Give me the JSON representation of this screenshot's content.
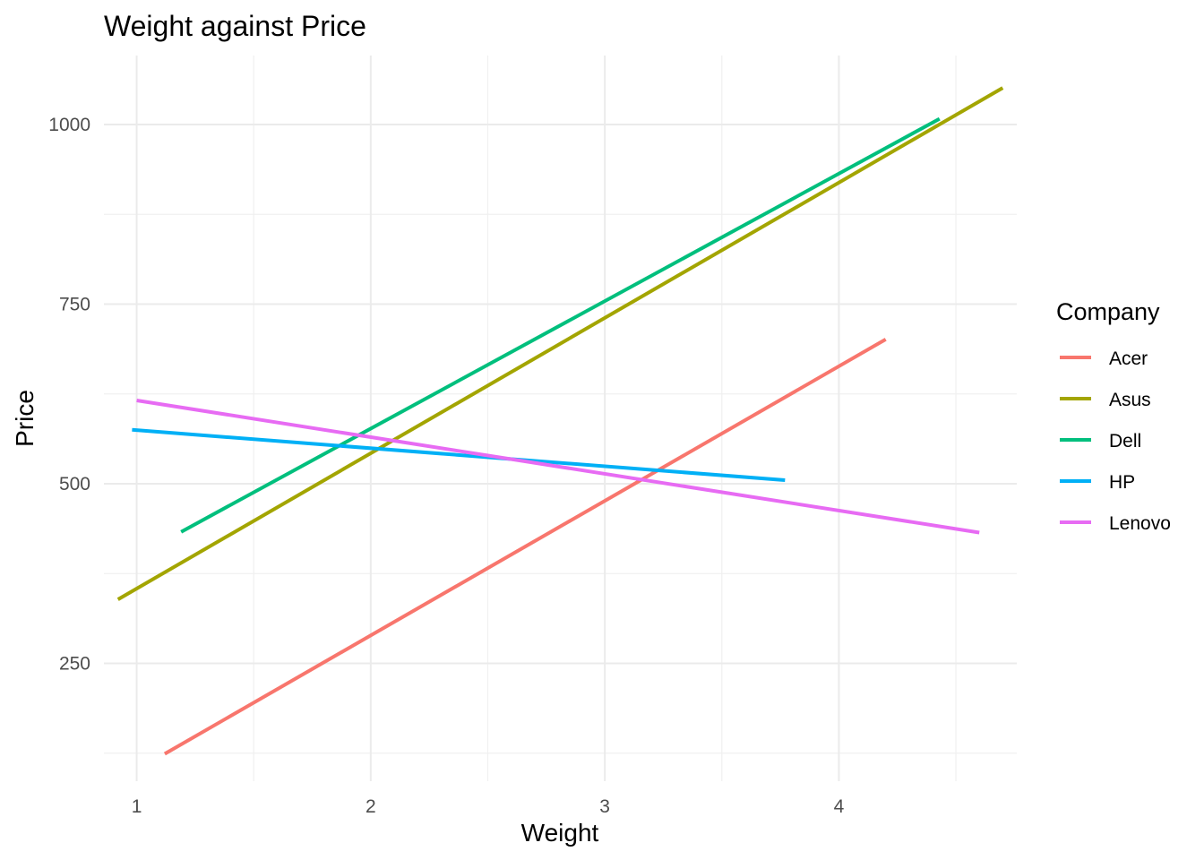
{
  "chart_data": {
    "type": "line",
    "title": "Weight against Price",
    "xlabel": "Weight",
    "ylabel": "Price",
    "xlim": [
      0.86,
      4.76
    ],
    "ylim": [
      86,
      1096
    ],
    "x_ticks": [
      1,
      2,
      3,
      4
    ],
    "y_ticks": [
      250,
      500,
      750,
      1000
    ],
    "grid": true,
    "legend": {
      "title": "Company",
      "position": "right"
    },
    "series": [
      {
        "name": "Acer",
        "color": "#F8766D",
        "x": [
          1.12,
          4.2
        ],
        "y": [
          124,
          701
        ]
      },
      {
        "name": "Asus",
        "color": "#A3A500",
        "x": [
          0.92,
          4.7
        ],
        "y": [
          339,
          1051
        ]
      },
      {
        "name": "Dell",
        "color": "#00BF7D",
        "x": [
          1.19,
          4.43
        ],
        "y": [
          433,
          1008
        ]
      },
      {
        "name": "HP",
        "color": "#00B0F6",
        "x": [
          0.98,
          3.77
        ],
        "y": [
          575,
          505
        ]
      },
      {
        "name": "Lenovo",
        "color": "#E76BF3",
        "x": [
          1.0,
          4.6
        ],
        "y": [
          616,
          432
        ]
      }
    ]
  }
}
